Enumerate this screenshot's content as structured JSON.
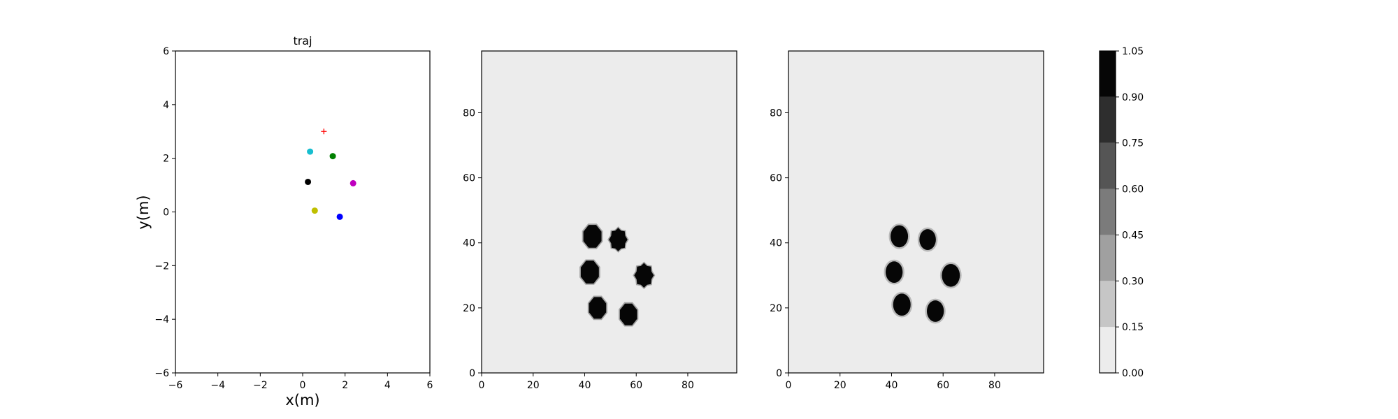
{
  "chart_data": [
    {
      "type": "scatter",
      "title": "traj",
      "xlabel": "x(m)",
      "ylabel": "y(m)",
      "xlim": [
        -6,
        6
      ],
      "ylim": [
        -6,
        6
      ],
      "xticks": [
        -6,
        -4,
        -2,
        0,
        2,
        4,
        6
      ],
      "yticks": [
        -6,
        -4,
        -2,
        0,
        2,
        4,
        6
      ],
      "grid": false,
      "points": [
        {
          "x": 0.35,
          "y": 2.25,
          "color": "#17becf"
        },
        {
          "x": 1.42,
          "y": 2.08,
          "color": "#008000"
        },
        {
          "x": 0.25,
          "y": 1.12,
          "color": "#000000"
        },
        {
          "x": 2.38,
          "y": 1.07,
          "color": "#bf00bf"
        },
        {
          "x": 0.57,
          "y": 0.05,
          "color": "#bfbf00"
        },
        {
          "x": 1.75,
          "y": -0.18,
          "color": "#0000ff"
        }
      ],
      "goal": {
        "x": 1.0,
        "y": 3.0,
        "marker": "+",
        "color": "#ff0000"
      }
    },
    {
      "type": "heatmap",
      "title": "",
      "xlim": [
        0,
        99
      ],
      "ylim": [
        0,
        99
      ],
      "xticks": [
        0,
        20,
        40,
        60,
        80
      ],
      "yticks": [
        0,
        20,
        40,
        60,
        80
      ],
      "background_value": 0.0,
      "blobs": [
        {
          "x": 43,
          "y": 42,
          "r": 3.8,
          "shape": "octagon",
          "value": 1.0
        },
        {
          "x": 53,
          "y": 41,
          "r": 3.6,
          "shape": "cross",
          "value": 1.0
        },
        {
          "x": 42,
          "y": 31,
          "r": 3.8,
          "shape": "octagon",
          "value": 1.0
        },
        {
          "x": 63,
          "y": 30,
          "r": 3.8,
          "shape": "cross",
          "value": 1.0
        },
        {
          "x": 45,
          "y": 20,
          "r": 3.6,
          "shape": "octagon",
          "value": 1.0
        },
        {
          "x": 57,
          "y": 18,
          "r": 3.6,
          "shape": "octagon",
          "value": 1.0
        }
      ]
    },
    {
      "type": "heatmap",
      "title": "",
      "xlim": [
        0,
        99
      ],
      "ylim": [
        0,
        99
      ],
      "xticks": [
        0,
        20,
        40,
        60,
        80
      ],
      "yticks": [
        0,
        20,
        40,
        60,
        80
      ],
      "background_value": 0.0,
      "blobs": [
        {
          "x": 43,
          "y": 42,
          "r": 3.4,
          "shape": "round",
          "value": 1.0
        },
        {
          "x": 54,
          "y": 41,
          "r": 3.2,
          "shape": "round",
          "value": 1.0
        },
        {
          "x": 41,
          "y": 31,
          "r": 3.3,
          "shape": "round",
          "value": 1.0
        },
        {
          "x": 63,
          "y": 30,
          "r": 3.5,
          "shape": "round",
          "value": 1.0
        },
        {
          "x": 44,
          "y": 21,
          "r": 3.4,
          "shape": "round",
          "value": 1.0
        },
        {
          "x": 57,
          "y": 19,
          "r": 3.3,
          "shape": "round",
          "value": 1.0
        }
      ]
    }
  ],
  "colorbar": {
    "levels": [
      0.0,
      0.15,
      0.3,
      0.45,
      0.6,
      0.75,
      0.9,
      1.05
    ],
    "tick_labels": [
      "0.00",
      "0.15",
      "0.30",
      "0.45",
      "0.60",
      "0.75",
      "0.90",
      "1.05"
    ],
    "colors": [
      "#ececec",
      "#c6c6c6",
      "#a0a0a0",
      "#7b7b7b",
      "#555555",
      "#2e2e2e",
      "#060606"
    ]
  }
}
